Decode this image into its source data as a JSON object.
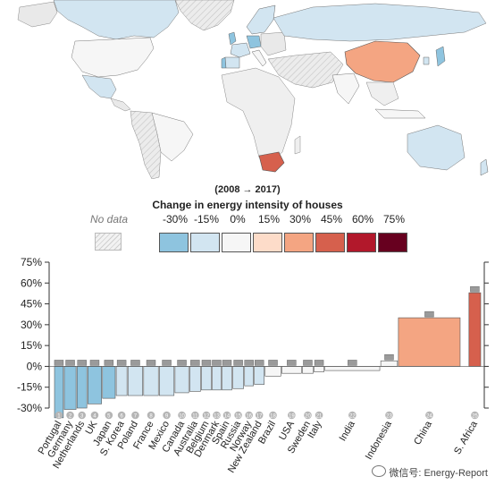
{
  "legend": {
    "period": "(2008 → 2017)",
    "title": "Change in energy intensity of houses",
    "nodata_label": "No data",
    "ticks": [
      "-30%",
      "-15%",
      "0%",
      "15%",
      "30%",
      "45%",
      "60%",
      "75%"
    ],
    "colors": [
      "#8ec4df",
      "#d2e5f1",
      "#f6f6f6",
      "#fddcc9",
      "#f4a582",
      "#d6604d",
      "#b2182b",
      "#67001f"
    ]
  },
  "chart_data": {
    "type": "bar",
    "variant": "variable-width bars (width proportional to each country's size)",
    "y_axis_ticks": [
      "75%",
      "60%",
      "45%",
      "30%",
      "15%",
      "0%",
      "-15%",
      "-30%"
    ],
    "ylim": [
      -40,
      80
    ],
    "grid": false,
    "categories": [
      "Portugal",
      "Germany",
      "Netherlands",
      "UK",
      "Japan",
      "S. Korea",
      "Poland",
      "France",
      "Mexico",
      "Canada",
      "Australia",
      "Belgium",
      "Denmark",
      "Spain",
      "Russia",
      "Norway",
      "New Zealand",
      "Brazil",
      "USA",
      "Sweden",
      "Italy",
      "India",
      "Indonesia",
      "China",
      "S. Africa"
    ],
    "ranks": [
      "1",
      "2",
      "3",
      "4",
      "5",
      "6",
      "7",
      "8",
      "9",
      "10",
      "11",
      "12",
      "13",
      "14",
      "15",
      "16",
      "17",
      "18",
      "19",
      "20",
      "21",
      "22",
      "23",
      "24",
      "25"
    ],
    "values": [
      -37,
      -31,
      -30,
      -27,
      -23,
      -21,
      -21,
      -21,
      -21,
      -19,
      -18,
      -17,
      -17,
      -17,
      -16,
      -14,
      -13,
      -7,
      -5,
      -5,
      -4,
      -3,
      4,
      35,
      53
    ],
    "colors": [
      "#8ec4df",
      "#8ec4df",
      "#8ec4df",
      "#8ec4df",
      "#8ec4df",
      "#d2e5f1",
      "#d2e5f1",
      "#d2e5f1",
      "#d2e5f1",
      "#d2e5f1",
      "#d2e5f1",
      "#d2e5f1",
      "#d2e5f1",
      "#d2e5f1",
      "#d2e5f1",
      "#d2e5f1",
      "#d2e5f1",
      "#f6f6f6",
      "#f6f6f6",
      "#f6f6f6",
      "#f6f6f6",
      "#f6f6f6",
      "#f6f6f6",
      "#f4a582",
      "#d6604d"
    ]
  },
  "map": {
    "highlight_colors": {
      "decrease_strong": "#8ec4df",
      "decrease": "#d2e5f1",
      "neutral": "#f6f6f6",
      "china": "#f4a582",
      "south_africa": "#d6604d",
      "no_data": "#e2e2e2"
    }
  },
  "watermark": "微信号: Energy-Report"
}
